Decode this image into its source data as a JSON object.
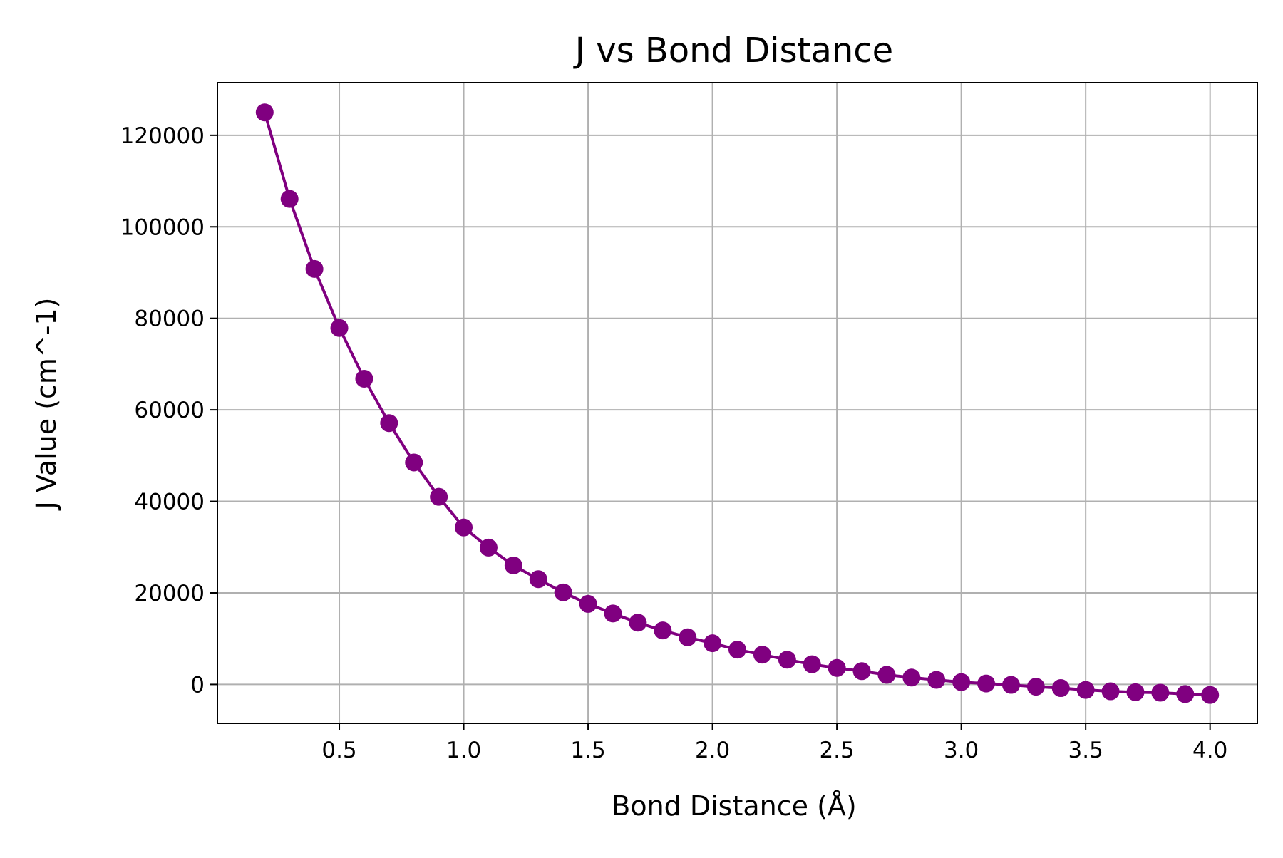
{
  "chart_data": {
    "type": "line",
    "title": "J vs Bond Distance",
    "xlabel": "Bond Distance (Å)",
    "ylabel": "J Value (cm^-1)",
    "xlim": [
      0.01,
      4.19
    ],
    "ylim": [
      -8500,
      131500
    ],
    "xticks": [
      0.5,
      1.0,
      1.5,
      2.0,
      2.5,
      3.0,
      3.5,
      4.0
    ],
    "xtick_labels": [
      "0.5",
      "1.0",
      "1.5",
      "2.0",
      "2.5",
      "3.0",
      "3.5",
      "4.0"
    ],
    "yticks": [
      0,
      20000,
      40000,
      60000,
      80000,
      100000,
      120000
    ],
    "ytick_labels": [
      "0",
      "20000",
      "40000",
      "60000",
      "80000",
      "100000",
      "120000"
    ],
    "grid": true,
    "series": [
      {
        "color": "#800080",
        "marker": "circle",
        "points": [
          {
            "x": 0.2,
            "y": 125000
          },
          {
            "x": 0.3,
            "y": 106100
          },
          {
            "x": 0.4,
            "y": 90800
          },
          {
            "x": 0.5,
            "y": 77900
          },
          {
            "x": 0.6,
            "y": 66800
          },
          {
            "x": 0.7,
            "y": 57100
          },
          {
            "x": 0.8,
            "y": 48500
          },
          {
            "x": 0.9,
            "y": 41000
          },
          {
            "x": 1.0,
            "y": 34300
          },
          {
            "x": 1.1,
            "y": 29900
          },
          {
            "x": 1.2,
            "y": 26000
          },
          {
            "x": 1.3,
            "y": 23000
          },
          {
            "x": 1.4,
            "y": 20100
          },
          {
            "x": 1.5,
            "y": 17600
          },
          {
            "x": 1.6,
            "y": 15500
          },
          {
            "x": 1.7,
            "y": 13500
          },
          {
            "x": 1.8,
            "y": 11800
          },
          {
            "x": 1.9,
            "y": 10300
          },
          {
            "x": 2.0,
            "y": 9000
          },
          {
            "x": 2.1,
            "y": 7600
          },
          {
            "x": 2.2,
            "y": 6500
          },
          {
            "x": 2.3,
            "y": 5400
          },
          {
            "x": 2.4,
            "y": 4400
          },
          {
            "x": 2.5,
            "y": 3600
          },
          {
            "x": 2.6,
            "y": 2900
          },
          {
            "x": 2.7,
            "y": 2100
          },
          {
            "x": 2.8,
            "y": 1500
          },
          {
            "x": 2.9,
            "y": 1000
          },
          {
            "x": 3.0,
            "y": 500
          },
          {
            "x": 3.1,
            "y": 200
          },
          {
            "x": 3.2,
            "y": -100
          },
          {
            "x": 3.3,
            "y": -500
          },
          {
            "x": 3.4,
            "y": -800
          },
          {
            "x": 3.5,
            "y": -1200
          },
          {
            "x": 3.6,
            "y": -1500
          },
          {
            "x": 3.7,
            "y": -1700
          },
          {
            "x": 3.8,
            "y": -1800
          },
          {
            "x": 3.9,
            "y": -2100
          },
          {
            "x": 4.0,
            "y": -2300
          }
        ]
      }
    ]
  }
}
